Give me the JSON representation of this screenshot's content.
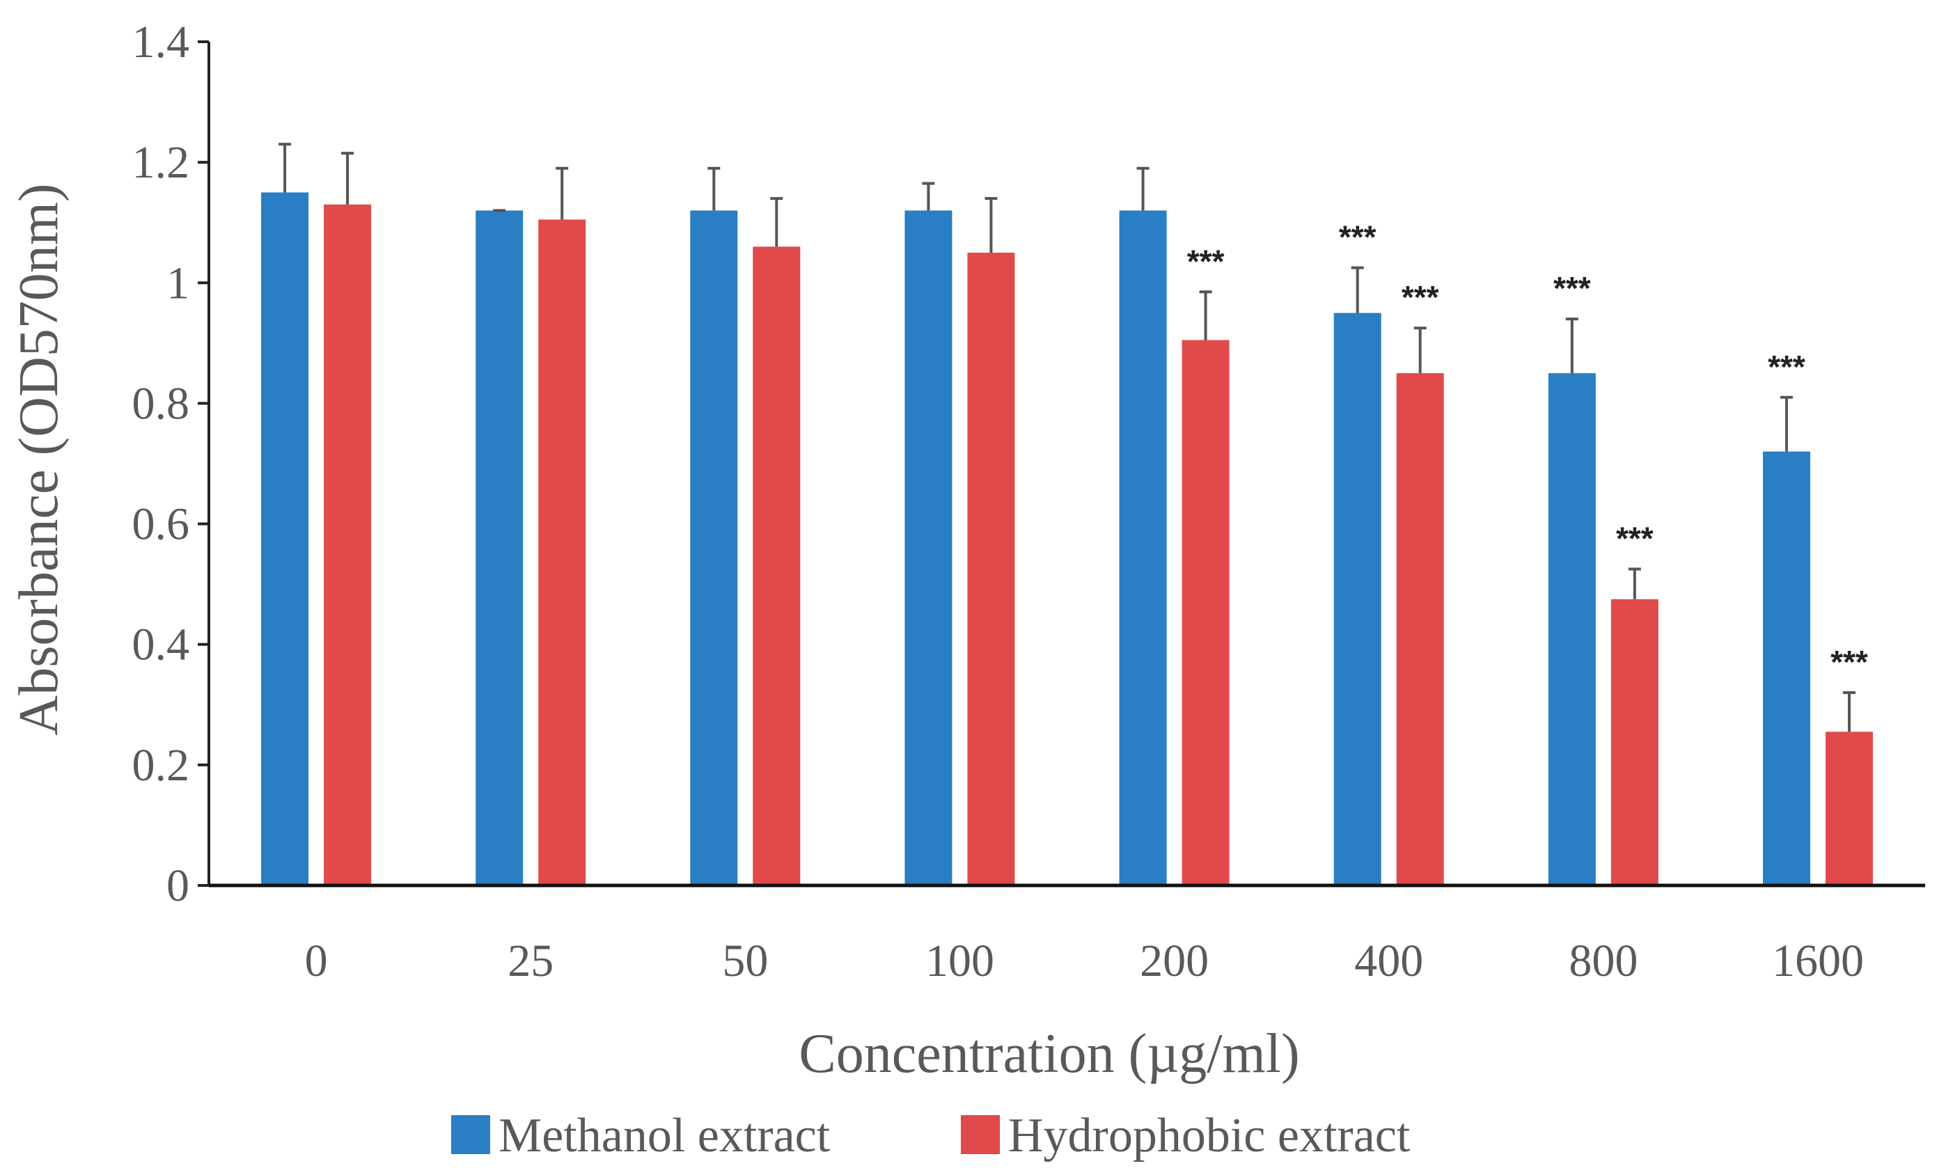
{
  "chart_data": {
    "type": "bar",
    "title": "",
    "xlabel": "Concentration (µg/ml)",
    "ylabel": "Absorbance (OD570nm)",
    "ylim": [
      0,
      1.4
    ],
    "yticks": [
      "0",
      "0.2",
      "0.4",
      "0.6",
      "0.8",
      "1",
      "1.2",
      "1.4"
    ],
    "categories": [
      "0",
      "25",
      "50",
      "100",
      "200",
      "400",
      "800",
      "1600"
    ],
    "series": [
      {
        "name": "Methanol extract",
        "color": "#2a7ec3",
        "values": [
          1.15,
          1.12,
          1.12,
          1.12,
          1.12,
          0.95,
          0.85,
          0.72
        ],
        "errors": [
          0.08,
          0.0,
          0.07,
          0.045,
          0.07,
          0.075,
          0.09,
          0.09
        ],
        "significance": [
          "",
          "",
          "",
          "",
          "",
          "***",
          "***",
          "***"
        ]
      },
      {
        "name": "Hydrophobic extract",
        "color": "#e04a4a",
        "values": [
          1.13,
          1.105,
          1.06,
          1.05,
          0.905,
          0.85,
          0.475,
          0.255
        ],
        "errors": [
          0.085,
          0.085,
          0.08,
          0.09,
          0.08,
          0.075,
          0.05,
          0.065
        ],
        "significance": [
          "",
          "",
          "",
          "",
          "***",
          "***",
          "***",
          "***"
        ]
      }
    ],
    "legend_position": "bottom-center",
    "grid": false
  }
}
